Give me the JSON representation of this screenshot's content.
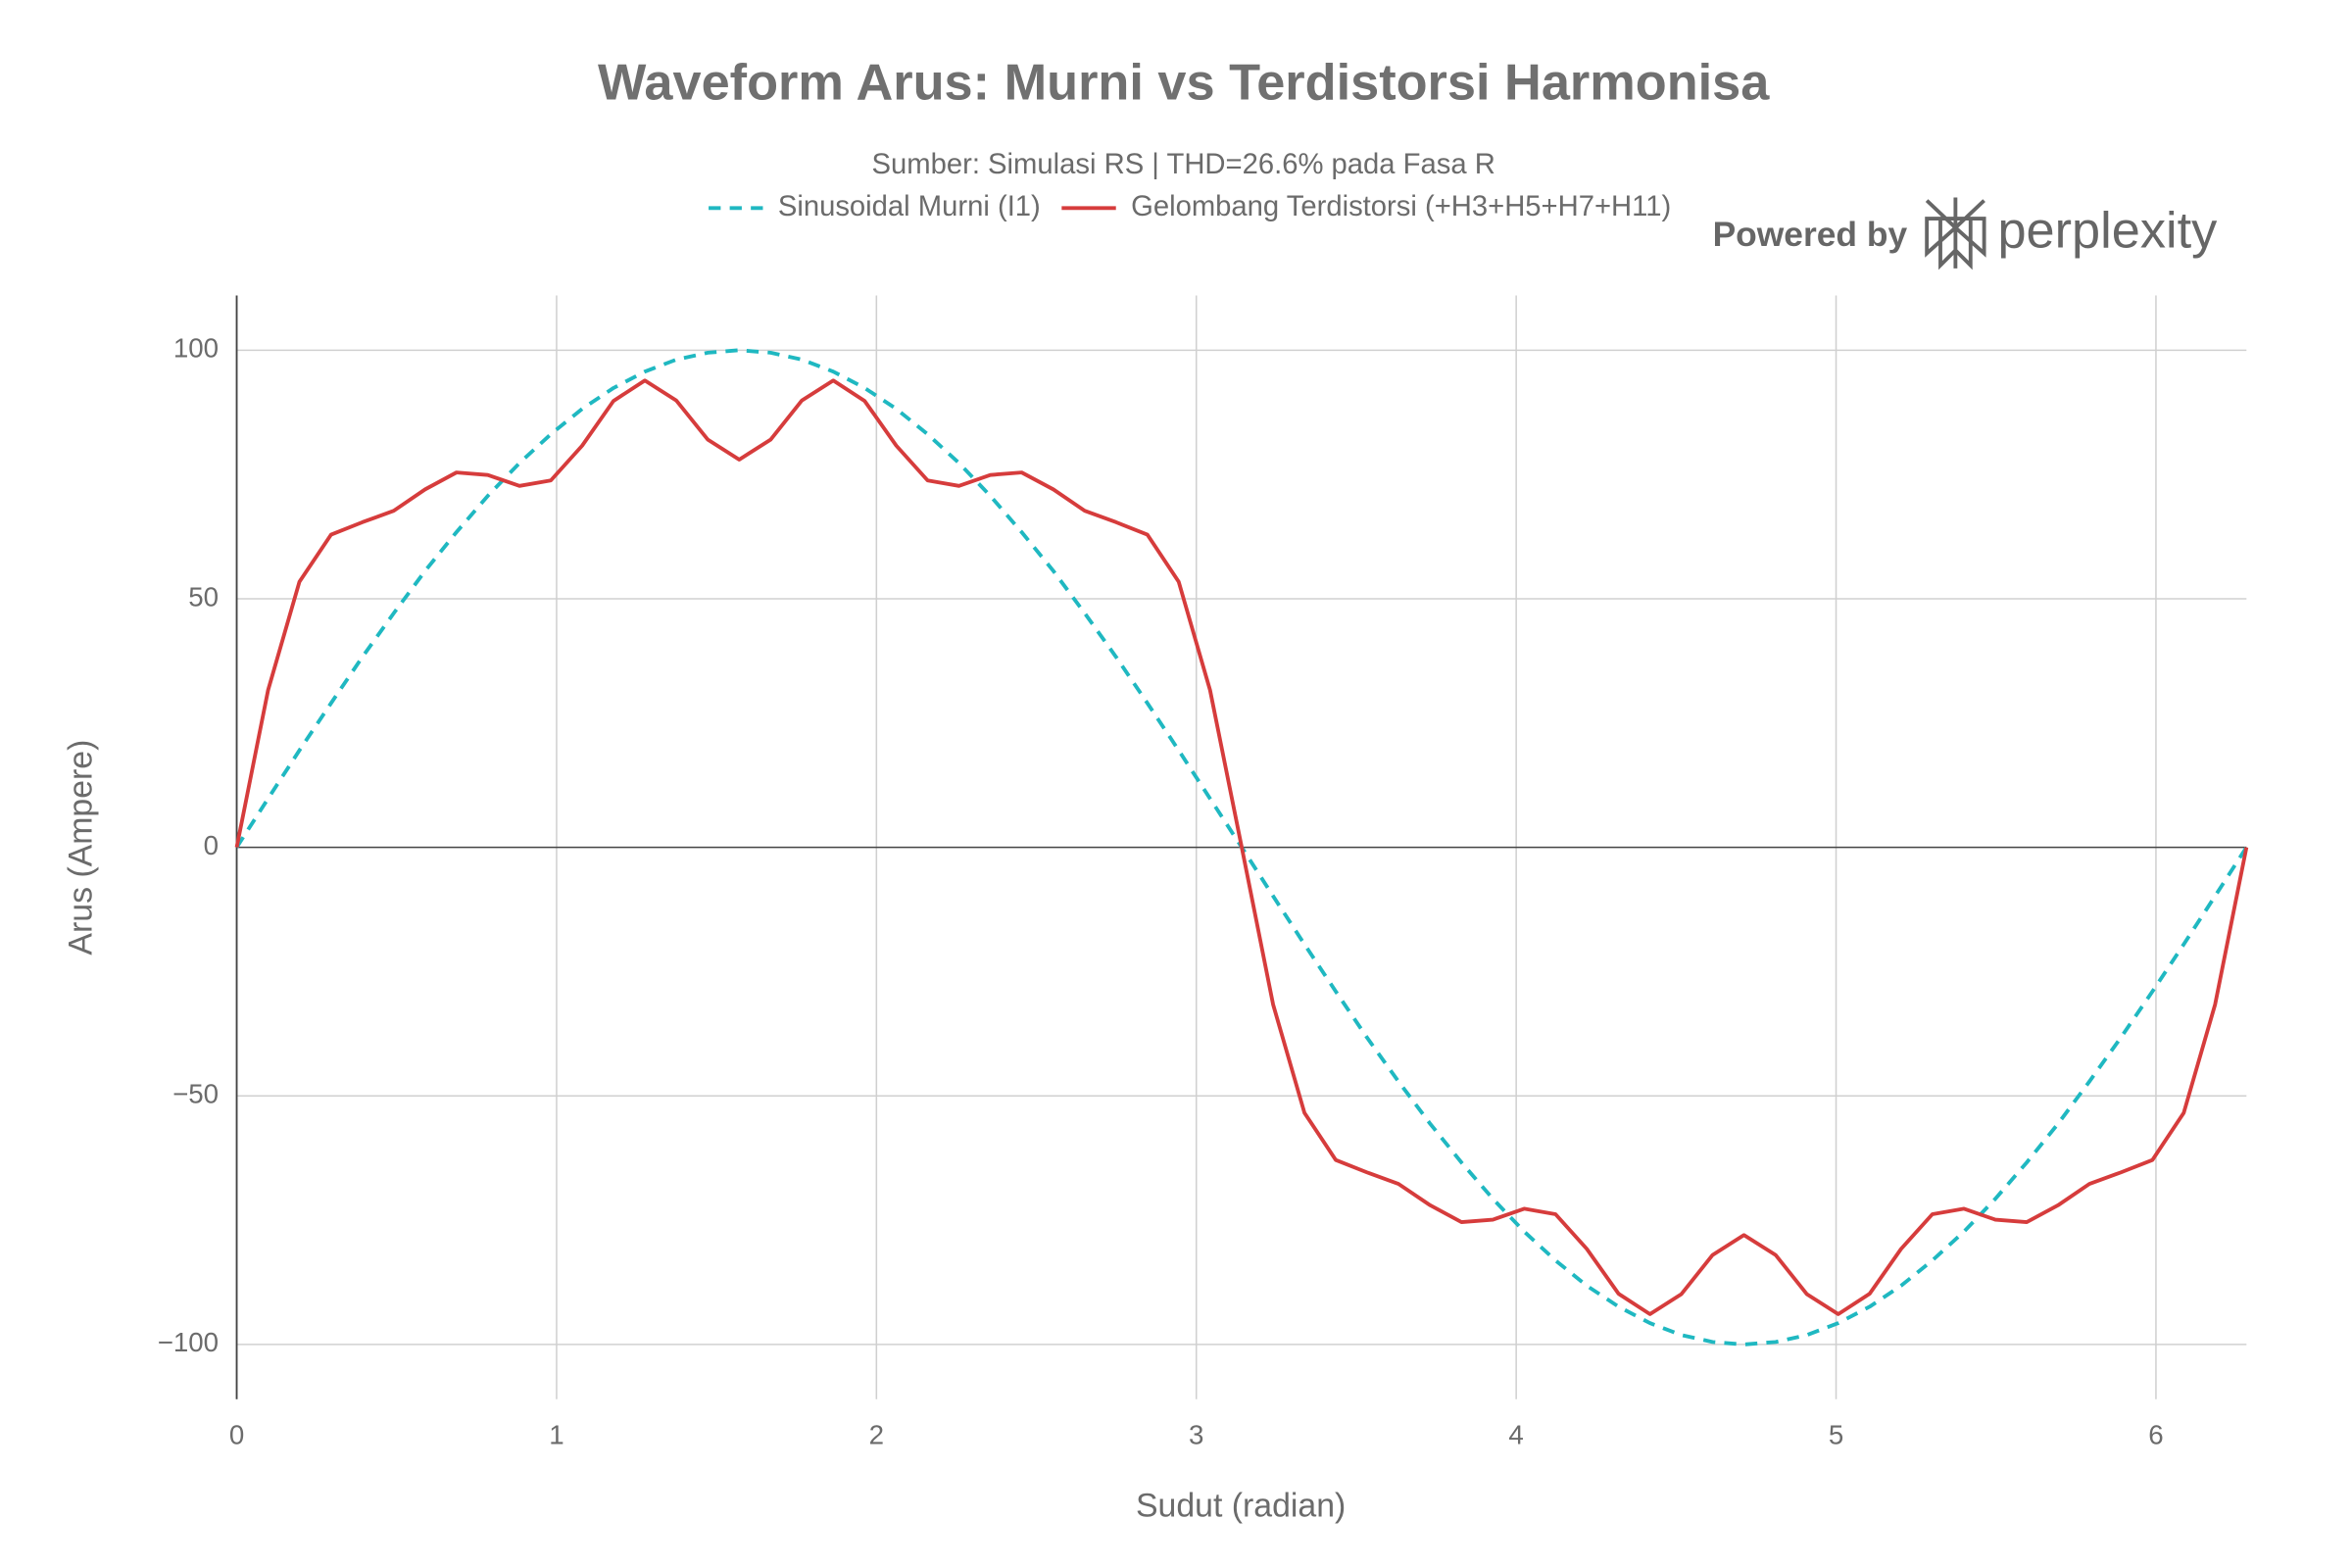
{
  "chart_data": {
    "type": "line",
    "title": "Waveform Arus: Murni vs Terdistorsi Harmonisa",
    "subtitle": "Sumber: Simulasi RS | THD=26.6% pada Fasa R",
    "x_label": "Sudut (radian)",
    "y_label": "Arus (Ampere)",
    "watermark": {
      "prefix": "Powered by",
      "brand": "perplexity"
    },
    "x": [
      0,
      0.098,
      0.196,
      0.295,
      0.393,
      0.491,
      0.589,
      0.687,
      0.785,
      0.884,
      0.982,
      1.08,
      1.178,
      1.276,
      1.374,
      1.473,
      1.571,
      1.669,
      1.767,
      1.865,
      1.963,
      2.062,
      2.16,
      2.258,
      2.356,
      2.454,
      2.553,
      2.651,
      2.749,
      2.847,
      2.945,
      3.043,
      3.142,
      3.24,
      3.338,
      3.436,
      3.534,
      3.632,
      3.731,
      3.829,
      3.927,
      4.025,
      4.123,
      4.221,
      4.32,
      4.418,
      4.516,
      4.614,
      4.712,
      4.811,
      4.909,
      5.007,
      5.105,
      5.203,
      5.301,
      5.4,
      5.498,
      5.596,
      5.694,
      5.792,
      5.89,
      5.989,
      6.087,
      6.185,
      6.283
    ],
    "series": [
      {
        "name": "Sinusoidal Murni (I1)",
        "color": "#1fb8c1",
        "dash": true,
        "values": [
          0,
          9.8,
          19.5,
          29.0,
          38.3,
          47.1,
          55.6,
          63.4,
          70.7,
          77.3,
          83.1,
          88.2,
          92.4,
          95.7,
          98.1,
          99.5,
          100,
          99.5,
          98.1,
          95.7,
          92.4,
          88.2,
          83.1,
          77.3,
          70.7,
          63.4,
          55.6,
          47.1,
          38.3,
          29.0,
          19.5,
          9.8,
          0,
          -9.8,
          -19.5,
          -29.0,
          -38.3,
          -47.1,
          -55.6,
          -63.4,
          -70.7,
          -77.3,
          -83.1,
          -88.2,
          -92.4,
          -95.7,
          -98.1,
          -99.5,
          -100,
          -99.5,
          -98.1,
          -95.7,
          -92.4,
          -88.2,
          -83.1,
          -77.3,
          -70.7,
          -63.4,
          -55.6,
          -47.1,
          -38.3,
          -29.0,
          -19.5,
          -9.8,
          0
        ]
      },
      {
        "name": "Gelombang Terdistorsi (+H3+H5+H7+H11)",
        "color": "#d63c3c",
        "dash": false,
        "values": [
          0,
          31.6,
          53.4,
          62.9,
          65.4,
          67.7,
          72.0,
          75.4,
          74.9,
          72.7,
          73.8,
          80.8,
          89.8,
          93.9,
          89.9,
          82.0,
          78,
          82.0,
          89.9,
          93.9,
          89.8,
          80.8,
          73.8,
          72.7,
          74.9,
          75.4,
          72.0,
          67.7,
          65.4,
          62.9,
          53.4,
          31.6,
          0,
          -31.6,
          -53.4,
          -62.9,
          -65.4,
          -67.7,
          -72.0,
          -75.4,
          -74.9,
          -72.7,
          -73.8,
          -80.8,
          -89.8,
          -93.9,
          -89.9,
          -82.0,
          -78,
          -82.0,
          -89.9,
          -93.9,
          -89.8,
          -80.8,
          -73.8,
          -72.7,
          -74.9,
          -75.4,
          -72.0,
          -67.7,
          -65.4,
          -62.9,
          -53.4,
          -31.6,
          0
        ]
      }
    ],
    "xlim": [
      0,
      6.283
    ],
    "ylim": [
      -111,
      111
    ],
    "xticks": [
      0,
      1,
      2,
      3,
      4,
      5,
      6
    ],
    "yticks": [
      {
        "value": -100,
        "label": "−100"
      },
      {
        "value": -50,
        "label": "−50"
      },
      0,
      50,
      100
    ],
    "grid": true,
    "legend": "top"
  }
}
